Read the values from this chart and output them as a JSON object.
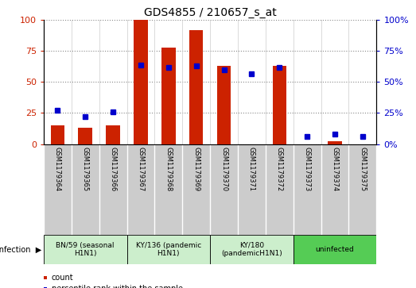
{
  "title": "GDS4855 / 210657_s_at",
  "samples": [
    "GSM1179364",
    "GSM1179365",
    "GSM1179366",
    "GSM1179367",
    "GSM1179368",
    "GSM1179369",
    "GSM1179370",
    "GSM1179371",
    "GSM1179372",
    "GSM1179373",
    "GSM1179374",
    "GSM1179375"
  ],
  "count_values": [
    15,
    13,
    15,
    100,
    78,
    92,
    63,
    0,
    63,
    0,
    2,
    0
  ],
  "percentile_values": [
    27,
    22,
    26,
    64,
    62,
    63,
    60,
    57,
    62,
    6,
    8,
    6
  ],
  "groups": [
    {
      "label": "BN/59 (seasonal\nH1N1)",
      "start": 1,
      "end": 3,
      "color": "#cceecc"
    },
    {
      "label": "KY/136 (pandemic\nH1N1)",
      "start": 4,
      "end": 6,
      "color": "#cceecc"
    },
    {
      "label": "KY/180\n(pandemicH1N1)",
      "start": 7,
      "end": 9,
      "color": "#cceecc"
    },
    {
      "label": "uninfected",
      "start": 10,
      "end": 12,
      "color": "#55cc55"
    }
  ],
  "bar_color": "#cc2200",
  "dot_color": "#0000cc",
  "ylim": [
    0,
    100
  ],
  "yticks": [
    0,
    25,
    50,
    75,
    100
  ],
  "grid_color": "#888888",
  "plot_bg": "#ffffff",
  "label_bg": "#cccccc",
  "bar_width": 0.5
}
